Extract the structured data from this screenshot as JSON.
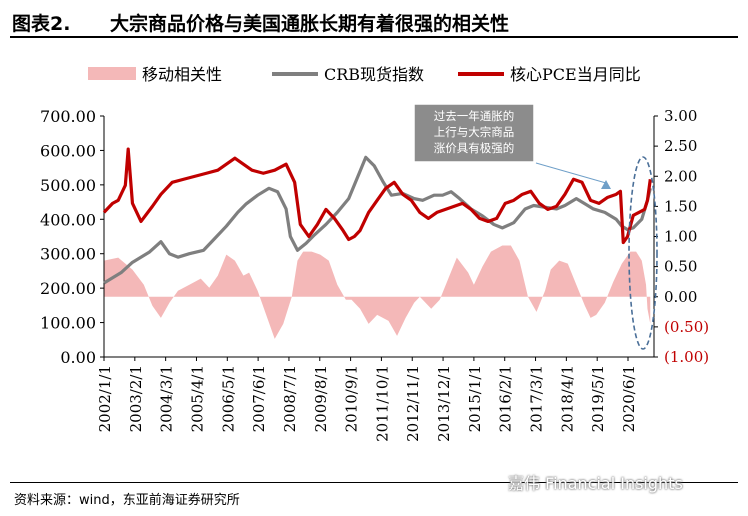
{
  "figure_label": "图表2.",
  "figure_title": "大宗商品价格与美国通胀长期有着很强的相关性",
  "source": "资料来源：wind，东亚前海证券研究所",
  "watermark": "嘉伟 Financial Insights",
  "colors": {
    "corr": "#f4b8b8",
    "crb": "#7f7f7f",
    "pce": "#c00000",
    "axis_right": "#c00000",
    "callout_bg": "#8c8c8c"
  },
  "chart_data": {
    "type": "line",
    "legend_position": "top",
    "annotation": [
      "过去一年通胀的",
      "上行与大宗商品",
      "涨价具有极强的"
    ],
    "x_tick_labels": [
      "2002/1/1",
      "2003/2/1",
      "2004/3/1",
      "2005/4/1",
      "2006/5/1",
      "2007/6/1",
      "2008/7/1",
      "2009/8/1",
      "2010/9/1",
      "2011/10/1",
      "2012/11/1",
      "2013/12/1",
      "2015/1/1",
      "2016/2/1",
      "2017/3/1",
      "2018/4/1",
      "2019/5/1",
      "2020/6/1"
    ],
    "x_range": [
      2002.0,
      2021.33
    ],
    "left_axis": {
      "ylim": [
        0,
        700
      ],
      "ticks": [
        "0.00",
        "100.00",
        "200.00",
        "300.00",
        "400.00",
        "500.00",
        "600.00",
        "700.00"
      ]
    },
    "right_axis": {
      "ylim": [
        -1.0,
        3.0
      ],
      "ticks": [
        "(1.00)",
        "(0.50)",
        "0.00",
        "0.50",
        "1.00",
        "1.50",
        "2.00",
        "2.50",
        "3.00"
      ]
    },
    "series": [
      {
        "name": "移动相关性",
        "axis": "right",
        "style": "area",
        "x": [
          2002.0,
          2002.5,
          2003.0,
          2003.4,
          2003.7,
          2004.0,
          2004.3,
          2004.6,
          2005.0,
          2005.4,
          2005.7,
          2006.0,
          2006.3,
          2006.6,
          2006.9,
          2007.1,
          2007.4,
          2007.7,
          2008.0,
          2008.3,
          2008.6,
          2008.8,
          2009.0,
          2009.3,
          2009.6,
          2009.9,
          2010.2,
          2010.5,
          2010.7,
          2011.0,
          2011.3,
          2011.6,
          2012.0,
          2012.3,
          2012.6,
          2012.9,
          2013.1,
          2013.5,
          2013.8,
          2014.1,
          2014.4,
          2014.8,
          2015.0,
          2015.3,
          2015.6,
          2016.0,
          2016.3,
          2016.6,
          2016.9,
          2017.2,
          2017.5,
          2017.7,
          2018.0,
          2018.3,
          2018.6,
          2018.9,
          2019.1,
          2019.3,
          2019.6,
          2019.9,
          2020.2,
          2020.5,
          2020.7,
          2020.9,
          2021.05,
          2021.1,
          2021.2
        ],
        "values": [
          0.6,
          0.65,
          0.45,
          0.2,
          -0.15,
          -0.35,
          -0.1,
          0.1,
          0.2,
          0.3,
          0.15,
          0.35,
          0.7,
          0.6,
          0.35,
          0.4,
          0.1,
          -0.3,
          -0.7,
          -0.45,
          0.0,
          0.6,
          0.75,
          0.75,
          0.7,
          0.6,
          0.2,
          -0.05,
          -0.05,
          -0.2,
          -0.45,
          -0.3,
          -0.4,
          -0.65,
          -0.35,
          -0.1,
          0.0,
          -0.2,
          -0.05,
          0.3,
          0.65,
          0.4,
          0.2,
          0.5,
          0.75,
          0.85,
          0.85,
          0.6,
          0.0,
          -0.25,
          0.1,
          0.45,
          0.6,
          0.55,
          0.2,
          -0.15,
          -0.35,
          -0.3,
          -0.1,
          0.25,
          0.55,
          0.75,
          0.75,
          0.6,
          0.2,
          -0.2,
          -0.45
        ]
      },
      {
        "name": "CRB现货指数",
        "axis": "left",
        "style": "line",
        "x": [
          2002.0,
          2002.6,
          2003.0,
          2003.6,
          2004.0,
          2004.3,
          2004.6,
          2005.0,
          2005.5,
          2005.9,
          2006.3,
          2006.7,
          2007.0,
          2007.4,
          2007.8,
          2008.1,
          2008.4,
          2008.55,
          2008.8,
          2009.1,
          2009.4,
          2009.8,
          2010.2,
          2010.6,
          2011.0,
          2011.2,
          2011.5,
          2011.8,
          2012.1,
          2012.5,
          2012.9,
          2013.2,
          2013.6,
          2013.9,
          2014.2,
          2014.5,
          2014.9,
          2015.3,
          2015.7,
          2016.0,
          2016.4,
          2016.8,
          2017.1,
          2017.5,
          2017.9,
          2018.2,
          2018.6,
          2018.9,
          2019.2,
          2019.6,
          2020.0,
          2020.2,
          2020.4,
          2020.6,
          2020.9,
          2021.1,
          2021.2
        ],
        "values": [
          215,
          245,
          275,
          305,
          335,
          300,
          290,
          300,
          310,
          345,
          380,
          420,
          445,
          470,
          490,
          480,
          430,
          350,
          310,
          330,
          355,
          385,
          420,
          460,
          540,
          580,
          555,
          510,
          470,
          475,
          460,
          455,
          470,
          470,
          480,
          460,
          430,
          410,
          385,
          375,
          390,
          430,
          440,
          435,
          430,
          440,
          460,
          445,
          430,
          420,
          400,
          380,
          370,
          375,
          400,
          455,
          490
        ]
      },
      {
        "name": "核心PCE当月同比",
        "axis": "right",
        "style": "line",
        "x": [
          2002.0,
          2002.3,
          2002.5,
          2002.75,
          2002.85,
          2003.0,
          2003.3,
          2003.7,
          2004.0,
          2004.4,
          2004.8,
          2005.2,
          2005.6,
          2006.0,
          2006.3,
          2006.6,
          2006.9,
          2007.2,
          2007.6,
          2008.0,
          2008.4,
          2008.7,
          2008.9,
          2009.2,
          2009.5,
          2009.8,
          2010.1,
          2010.4,
          2010.6,
          2010.8,
          2011.0,
          2011.3,
          2011.6,
          2011.9,
          2012.2,
          2012.5,
          2012.8,
          2013.1,
          2013.4,
          2013.7,
          2014.0,
          2014.3,
          2014.6,
          2014.9,
          2015.2,
          2015.5,
          2015.8,
          2016.1,
          2016.4,
          2016.7,
          2017.0,
          2017.3,
          2017.6,
          2017.9,
          2018.2,
          2018.5,
          2018.8,
          2019.1,
          2019.4,
          2019.7,
          2020.0,
          2020.15,
          2020.25,
          2020.4,
          2020.6,
          2020.8,
          2021.0,
          2021.1,
          2021.2
        ],
        "values": [
          1.4,
          1.55,
          1.6,
          1.85,
          2.45,
          1.55,
          1.25,
          1.5,
          1.7,
          1.9,
          1.95,
          2.0,
          2.05,
          2.1,
          2.2,
          2.3,
          2.2,
          2.1,
          2.05,
          2.1,
          2.2,
          1.9,
          1.2,
          1.0,
          1.2,
          1.45,
          1.3,
          1.1,
          0.95,
          1.0,
          1.1,
          1.4,
          1.6,
          1.8,
          1.9,
          1.7,
          1.6,
          1.4,
          1.3,
          1.4,
          1.45,
          1.5,
          1.55,
          1.45,
          1.3,
          1.25,
          1.3,
          1.55,
          1.6,
          1.7,
          1.75,
          1.55,
          1.45,
          1.5,
          1.7,
          1.95,
          1.9,
          1.6,
          1.55,
          1.65,
          1.7,
          1.75,
          0.9,
          1.0,
          1.35,
          1.4,
          1.45,
          1.6,
          1.95
        ]
      }
    ]
  }
}
